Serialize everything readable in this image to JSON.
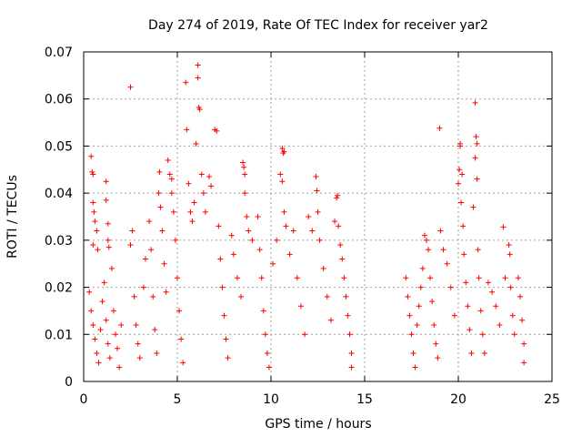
{
  "chart_data": {
    "type": "scatter",
    "title": "Day 274 of 2019, Rate Of TEC Index for receiver yar2",
    "xlabel": "GPS time / hours",
    "ylabel": "ROTI / TECUs",
    "xlim": [
      0,
      25
    ],
    "ylim": [
      0,
      0.07
    ],
    "x_ticks": [
      0,
      5,
      10,
      15,
      20,
      25
    ],
    "x_tick_labels": [
      "0",
      "5",
      "10",
      "15",
      "20",
      "25"
    ],
    "y_ticks": [
      0,
      0.01,
      0.02,
      0.03,
      0.04,
      0.05,
      0.06,
      0.07
    ],
    "y_tick_labels": [
      "0",
      "0.01",
      "0.02",
      "0.03",
      "0.04",
      "0.05",
      "0.06",
      "0.07"
    ],
    "grid": true,
    "marker": "plus",
    "color": "#ff0000",
    "series": [
      {
        "name": "ROTI",
        "points": [
          [
            0.4,
            0.0478
          ],
          [
            0.45,
            0.0445
          ],
          [
            0.5,
            0.044
          ],
          [
            0.5,
            0.038
          ],
          [
            0.55,
            0.036
          ],
          [
            0.6,
            0.034
          ],
          [
            0.5,
            0.029
          ],
          [
            0.7,
            0.032
          ],
          [
            0.75,
            0.028
          ],
          [
            0.3,
            0.019
          ],
          [
            0.4,
            0.015
          ],
          [
            0.5,
            0.012
          ],
          [
            0.6,
            0.009
          ],
          [
            0.7,
            0.006
          ],
          [
            0.8,
            0.004
          ],
          [
            0.9,
            0.011
          ],
          [
            1.0,
            0.017
          ],
          [
            1.1,
            0.021
          ],
          [
            1.2,
            0.013
          ],
          [
            1.3,
            0.008
          ],
          [
            1.4,
            0.005
          ],
          [
            1.2,
            0.0425
          ],
          [
            1.2,
            0.0385
          ],
          [
            1.3,
            0.0335
          ],
          [
            1.3,
            0.03
          ],
          [
            1.35,
            0.0285
          ],
          [
            1.5,
            0.024
          ],
          [
            1.6,
            0.015
          ],
          [
            1.7,
            0.01
          ],
          [
            1.8,
            0.007
          ],
          [
            1.9,
            0.003
          ],
          [
            2.0,
            0.012
          ],
          [
            2.5,
            0.0625
          ],
          [
            2.6,
            0.032
          ],
          [
            2.5,
            0.029
          ],
          [
            2.7,
            0.018
          ],
          [
            2.8,
            0.012
          ],
          [
            2.9,
            0.008
          ],
          [
            3.0,
            0.005
          ],
          [
            3.2,
            0.02
          ],
          [
            3.3,
            0.026
          ],
          [
            3.5,
            0.034
          ],
          [
            3.6,
            0.028
          ],
          [
            3.7,
            0.018
          ],
          [
            3.8,
            0.011
          ],
          [
            3.9,
            0.006
          ],
          [
            4.0,
            0.04
          ],
          [
            4.05,
            0.0445
          ],
          [
            4.1,
            0.037
          ],
          [
            4.2,
            0.032
          ],
          [
            4.3,
            0.025
          ],
          [
            4.4,
            0.019
          ],
          [
            4.5,
            0.047
          ],
          [
            4.6,
            0.044
          ],
          [
            4.7,
            0.043
          ],
          [
            4.7,
            0.04
          ],
          [
            4.8,
            0.036
          ],
          [
            4.9,
            0.03
          ],
          [
            5.0,
            0.022
          ],
          [
            5.1,
            0.015
          ],
          [
            5.2,
            0.009
          ],
          [
            5.3,
            0.004
          ],
          [
            5.45,
            0.0635
          ],
          [
            5.5,
            0.0535
          ],
          [
            5.6,
            0.042
          ],
          [
            5.7,
            0.036
          ],
          [
            5.8,
            0.034
          ],
          [
            5.9,
            0.038
          ],
          [
            6.0,
            0.0505
          ],
          [
            6.1,
            0.0672
          ],
          [
            6.1,
            0.0645
          ],
          [
            6.15,
            0.0582
          ],
          [
            6.2,
            0.0578
          ],
          [
            6.3,
            0.044
          ],
          [
            6.4,
            0.04
          ],
          [
            6.5,
            0.036
          ],
          [
            6.7,
            0.0435
          ],
          [
            6.8,
            0.0415
          ],
          [
            7.0,
            0.0535
          ],
          [
            7.1,
            0.0532
          ],
          [
            7.2,
            0.033
          ],
          [
            7.3,
            0.026
          ],
          [
            7.4,
            0.02
          ],
          [
            7.5,
            0.014
          ],
          [
            7.6,
            0.009
          ],
          [
            7.7,
            0.005
          ],
          [
            7.9,
            0.031
          ],
          [
            8.0,
            0.027
          ],
          [
            8.2,
            0.022
          ],
          [
            8.4,
            0.018
          ],
          [
            8.5,
            0.0465
          ],
          [
            8.55,
            0.0455
          ],
          [
            8.6,
            0.044
          ],
          [
            8.6,
            0.04
          ],
          [
            8.7,
            0.035
          ],
          [
            8.8,
            0.032
          ],
          [
            9.0,
            0.03
          ],
          [
            9.3,
            0.035
          ],
          [
            9.4,
            0.028
          ],
          [
            9.5,
            0.022
          ],
          [
            9.6,
            0.015
          ],
          [
            9.7,
            0.01
          ],
          [
            9.8,
            0.006
          ],
          [
            9.9,
            0.003
          ],
          [
            10.1,
            0.025
          ],
          [
            10.3,
            0.03
          ],
          [
            10.5,
            0.044
          ],
          [
            10.6,
            0.0495
          ],
          [
            10.65,
            0.0485
          ],
          [
            10.7,
            0.0488
          ],
          [
            10.6,
            0.0425
          ],
          [
            10.7,
            0.036
          ],
          [
            10.8,
            0.033
          ],
          [
            11.0,
            0.027
          ],
          [
            11.2,
            0.032
          ],
          [
            11.4,
            0.022
          ],
          [
            11.6,
            0.016
          ],
          [
            11.8,
            0.01
          ],
          [
            12.0,
            0.035
          ],
          [
            12.2,
            0.032
          ],
          [
            12.4,
            0.0435
          ],
          [
            12.45,
            0.0405
          ],
          [
            12.5,
            0.036
          ],
          [
            12.6,
            0.03
          ],
          [
            12.8,
            0.024
          ],
          [
            13.0,
            0.018
          ],
          [
            13.2,
            0.013
          ],
          [
            13.4,
            0.034
          ],
          [
            13.5,
            0.039
          ],
          [
            13.55,
            0.0395
          ],
          [
            13.6,
            0.033
          ],
          [
            13.7,
            0.029
          ],
          [
            13.8,
            0.026
          ],
          [
            13.9,
            0.022
          ],
          [
            14.0,
            0.018
          ],
          [
            14.1,
            0.014
          ],
          [
            14.2,
            0.01
          ],
          [
            14.3,
            0.006
          ],
          [
            14.3,
            0.003
          ],
          [
            17.2,
            0.022
          ],
          [
            17.3,
            0.018
          ],
          [
            17.4,
            0.014
          ],
          [
            17.5,
            0.01
          ],
          [
            17.6,
            0.006
          ],
          [
            17.7,
            0.003
          ],
          [
            17.8,
            0.012
          ],
          [
            17.9,
            0.016
          ],
          [
            18.0,
            0.02
          ],
          [
            18.1,
            0.024
          ],
          [
            18.2,
            0.031
          ],
          [
            18.3,
            0.03
          ],
          [
            18.4,
            0.028
          ],
          [
            18.5,
            0.022
          ],
          [
            18.6,
            0.017
          ],
          [
            18.7,
            0.012
          ],
          [
            18.8,
            0.008
          ],
          [
            18.9,
            0.005
          ],
          [
            19.0,
            0.0538
          ],
          [
            19.05,
            0.032
          ],
          [
            19.2,
            0.028
          ],
          [
            19.4,
            0.025
          ],
          [
            19.6,
            0.02
          ],
          [
            19.8,
            0.014
          ],
          [
            20.0,
            0.042
          ],
          [
            20.05,
            0.045
          ],
          [
            20.1,
            0.05
          ],
          [
            20.1,
            0.0505
          ],
          [
            20.15,
            0.038
          ],
          [
            20.2,
            0.044
          ],
          [
            20.25,
            0.033
          ],
          [
            20.3,
            0.027
          ],
          [
            20.4,
            0.021
          ],
          [
            20.5,
            0.016
          ],
          [
            20.6,
            0.011
          ],
          [
            20.7,
            0.006
          ],
          [
            20.8,
            0.037
          ],
          [
            20.9,
            0.0592
          ],
          [
            20.95,
            0.052
          ],
          [
            21.0,
            0.0505
          ],
          [
            20.9,
            0.0475
          ],
          [
            21.0,
            0.043
          ],
          [
            21.05,
            0.028
          ],
          [
            21.1,
            0.022
          ],
          [
            21.2,
            0.015
          ],
          [
            21.3,
            0.01
          ],
          [
            21.4,
            0.006
          ],
          [
            21.6,
            0.021
          ],
          [
            21.8,
            0.019
          ],
          [
            22.0,
            0.016
          ],
          [
            22.2,
            0.012
          ],
          [
            22.4,
            0.0328
          ],
          [
            22.5,
            0.022
          ],
          [
            22.7,
            0.029
          ],
          [
            22.75,
            0.027
          ],
          [
            22.8,
            0.02
          ],
          [
            22.9,
            0.014
          ],
          [
            23.0,
            0.01
          ],
          [
            23.2,
            0.022
          ],
          [
            23.3,
            0.018
          ],
          [
            23.4,
            0.013
          ],
          [
            23.5,
            0.008
          ],
          [
            23.5,
            0.004
          ]
        ]
      }
    ]
  }
}
